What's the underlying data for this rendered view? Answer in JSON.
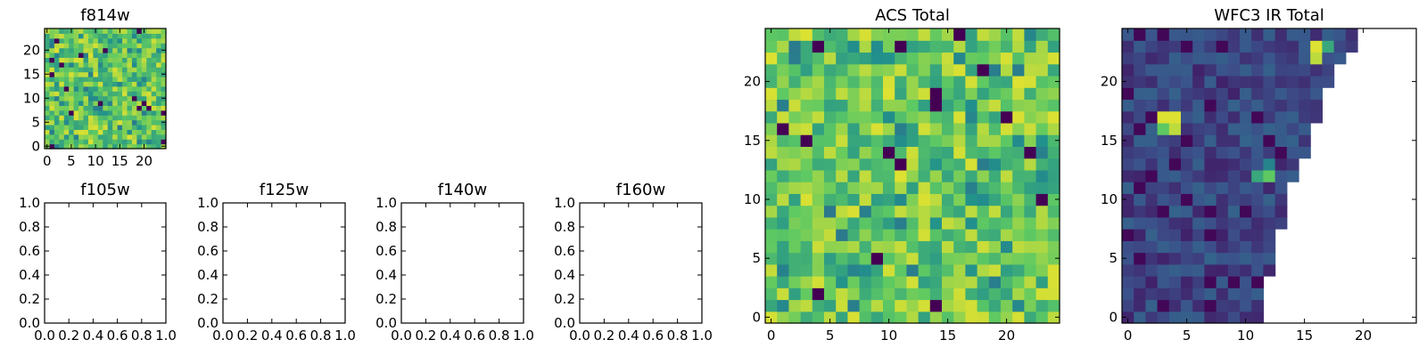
{
  "chart_data": [
    {
      "type": "heatmap",
      "title": "f814w",
      "xticks": [
        "0",
        "5",
        "10",
        "15",
        "20"
      ],
      "yticks": [
        "0",
        "5",
        "10",
        "15",
        "20"
      ],
      "xlim": [
        -0.5,
        24.5
      ],
      "ylim": [
        -0.5,
        24.5
      ],
      "grid_shape": [
        25,
        25
      ],
      "colormap": "viridis",
      "valid_region": "full"
    },
    {
      "type": "heatmap",
      "title": "f105w",
      "xticks": [
        "0.0",
        "0.2",
        "0.4",
        "0.6",
        "0.8",
        "1.0"
      ],
      "yticks": [
        "0.0",
        "0.2",
        "0.4",
        "0.6",
        "0.8",
        "1.0"
      ],
      "xlim": [
        0,
        1
      ],
      "ylim": [
        0,
        1
      ],
      "grid_shape": [
        0,
        0
      ]
    },
    {
      "type": "heatmap",
      "title": "f125w",
      "xticks": [
        "0.0",
        "0.2",
        "0.4",
        "0.6",
        "0.8",
        "1.0"
      ],
      "yticks": [
        "0.0",
        "0.2",
        "0.4",
        "0.6",
        "0.8",
        "1.0"
      ],
      "xlim": [
        0,
        1
      ],
      "ylim": [
        0,
        1
      ],
      "grid_shape": [
        0,
        0
      ]
    },
    {
      "type": "heatmap",
      "title": "f140w",
      "xticks": [
        "0.0",
        "0.2",
        "0.4",
        "0.6",
        "0.8",
        "1.0"
      ],
      "yticks": [
        "0.0",
        "0.2",
        "0.4",
        "0.6",
        "0.8",
        "1.0"
      ],
      "xlim": [
        0,
        1
      ],
      "ylim": [
        0,
        1
      ],
      "grid_shape": [
        0,
        0
      ]
    },
    {
      "type": "heatmap",
      "title": "f160w",
      "xticks": [
        "0.0",
        "0.2",
        "0.4",
        "0.6",
        "0.8",
        "1.0"
      ],
      "yticks": [
        "0.0",
        "0.2",
        "0.4",
        "0.6",
        "0.8",
        "1.0"
      ],
      "xlim": [
        0,
        1
      ],
      "ylim": [
        0,
        1
      ],
      "grid_shape": [
        0,
        0
      ]
    },
    {
      "type": "heatmap",
      "title": "ACS Total",
      "xticks": [
        "0",
        "5",
        "10",
        "15",
        "20"
      ],
      "yticks": [
        "0",
        "5",
        "10",
        "15",
        "20"
      ],
      "xlim": [
        -0.5,
        24.5
      ],
      "ylim": [
        -0.5,
        24.5
      ],
      "grid_shape": [
        25,
        25
      ],
      "colormap": "viridis",
      "valid_region": "full"
    },
    {
      "type": "heatmap",
      "title": "WFC3 IR Total",
      "xticks": [
        "0",
        "5",
        "10",
        "15",
        "20"
      ],
      "yticks": [
        "0",
        "5",
        "10",
        "15",
        "20"
      ],
      "xlim": [
        -0.5,
        24.5
      ],
      "ylim": [
        -0.5,
        24.5
      ],
      "grid_shape": [
        25,
        25
      ],
      "colormap": "viridis",
      "valid_region": "triangle",
      "valid_row_lengths": [
        12,
        12,
        12,
        12,
        13,
        13,
        13,
        13,
        14,
        14,
        14,
        14,
        15,
        15,
        16,
        16,
        16,
        17,
        17,
        17,
        18,
        18,
        19,
        20,
        20
      ],
      "hotspots": [
        {
          "x": 3,
          "y": 17,
          "level": 0.95
        },
        {
          "x": 4,
          "y": 17,
          "level": 0.95
        },
        {
          "x": 4,
          "y": 16,
          "level": 0.9
        },
        {
          "x": 3,
          "y": 16,
          "level": 0.75
        },
        {
          "x": 16,
          "y": 23,
          "level": 0.95
        },
        {
          "x": 16,
          "y": 22,
          "level": 0.9
        },
        {
          "x": 17,
          "y": 23,
          "level": 0.6
        },
        {
          "x": 12,
          "y": 12,
          "level": 0.75
        },
        {
          "x": 11,
          "y": 12,
          "level": 0.6
        },
        {
          "x": 12,
          "y": 13,
          "level": 0.45
        }
      ]
    }
  ]
}
